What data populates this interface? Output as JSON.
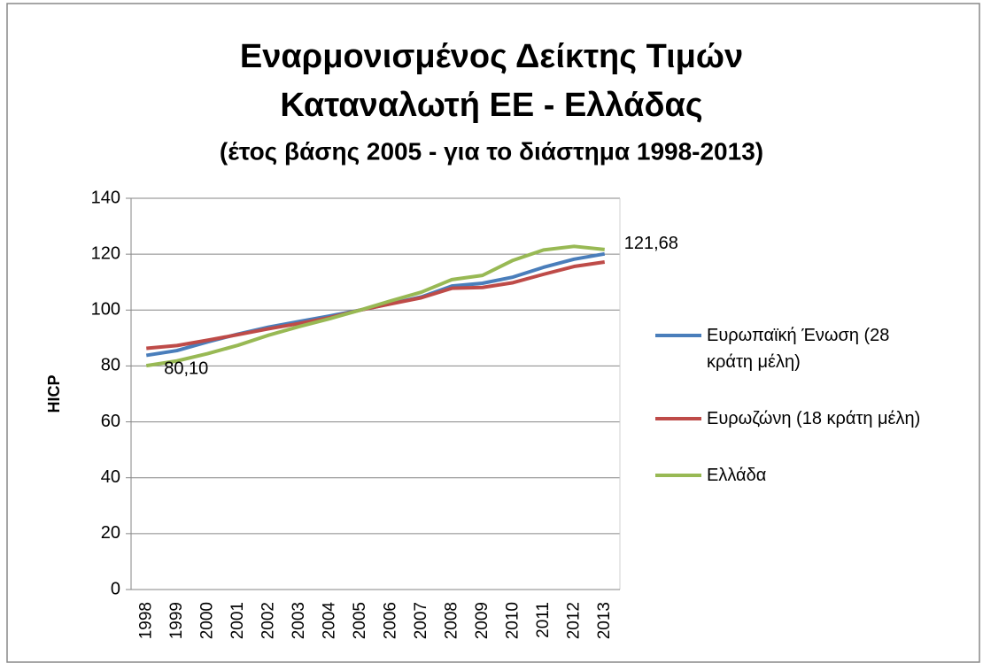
{
  "chart_data": {
    "type": "line",
    "title": [
      "Εναρμονισμένος Δείκτης Τιμών",
      "Καταναλωτή ΕΕ - Ελλάδας"
    ],
    "subtitle": "(έτος βάσης 2005 - για το διάστημα 1998-2013)",
    "y_label": "HICP",
    "categories": [
      "1998",
      "1999",
      "2000",
      "2001",
      "2002",
      "2003",
      "2004",
      "2005",
      "2006",
      "2007",
      "2008",
      "2009",
      "2010",
      "2011",
      "2012",
      "2013"
    ],
    "series": [
      {
        "name": "Ευρωπαϊκή Ένωση (28 κράτη μέλη)",
        "color": "#4a7ebb",
        "values": [
          83.8,
          85.5,
          88.6,
          91.4,
          93.9,
          95.9,
          97.9,
          100,
          102.3,
          104.7,
          108.6,
          109.6,
          111.8,
          115.3,
          118.2,
          120.1
        ]
      },
      {
        "name": "Ευρωζώνη (18 κράτη μέλη)",
        "color": "#be4b48",
        "values": [
          86.3,
          87.3,
          89.2,
          91.2,
          93.3,
          95.2,
          97.3,
          100,
          102.2,
          104.4,
          107.8,
          108.1,
          109.8,
          112.8,
          115.6,
          117.2
        ]
      },
      {
        "name": "Ελλάδα",
        "color": "#98b954",
        "values": [
          80.1,
          81.8,
          84.4,
          87.4,
          91.0,
          94.1,
          96.9,
          100,
          103.3,
          106.4,
          110.9,
          112.4,
          117.8,
          121.5,
          122.8,
          121.68
        ],
        "value_labels": [
          "80,10",
          null,
          null,
          null,
          null,
          null,
          null,
          null,
          null,
          null,
          null,
          null,
          null,
          null,
          null,
          "121,68"
        ]
      }
    ],
    "ylim": [
      0,
      140
    ],
    "yticks": [
      0,
      20,
      40,
      60,
      80,
      100,
      120,
      140
    ],
    "grid": true,
    "legend": "right"
  }
}
